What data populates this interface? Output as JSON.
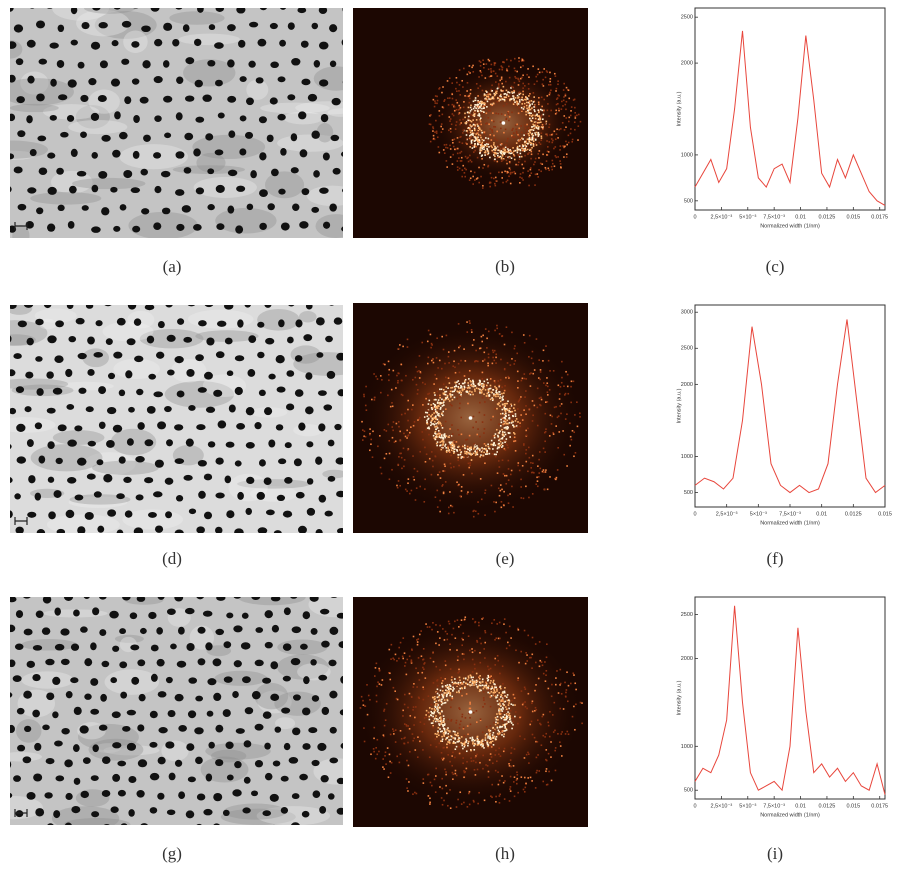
{
  "captions": [
    "(a)",
    "(b)",
    "(c)",
    "(d)",
    "(e)",
    "(f)",
    "(g)",
    "(h)",
    "(i)"
  ],
  "chart_data": [
    {
      "type": "line",
      "xlabel": "Normalized width (1/nm)",
      "ylabel": "Intensity (a.u.)",
      "x": [
        0,
        0.00075,
        0.0015,
        0.00225,
        0.003,
        0.00375,
        0.0045,
        0.00525,
        0.006,
        0.00675,
        0.0075,
        0.00825,
        0.009,
        0.00975,
        0.0105,
        0.01125,
        0.012,
        0.01275,
        0.0135,
        0.01425,
        0.015,
        0.01575,
        0.0165,
        0.01725,
        0.018
      ],
      "series": [
        {
          "color": "#e8463c",
          "values": [
            650,
            800,
            950,
            700,
            850,
            1500,
            2350,
            1300,
            750,
            650,
            850,
            900,
            700,
            1400,
            2300,
            1600,
            800,
            650,
            950,
            750,
            1000,
            800,
            600,
            500,
            450
          ]
        }
      ],
      "xlim": [
        0,
        0.018
      ],
      "ylim": [
        400,
        2600
      ],
      "xticks": [
        0,
        {
          "value": 0.0025,
          "label": "2,5×10⁻³"
        },
        {
          "value": 0.005,
          "label": "5×10⁻³"
        },
        {
          "value": 0.0075,
          "label": "7,5×10⁻³"
        },
        0.01,
        0.0125,
        0.015,
        0.0175
      ],
      "yticks": [
        500,
        1000,
        2000,
        2500
      ]
    },
    {
      "type": "line",
      "xlabel": "Normalized width (1/nm)",
      "ylabel": "Intensity (a.u.)",
      "x": [
        0,
        0.00075,
        0.0015,
        0.00225,
        0.003,
        0.00375,
        0.0045,
        0.00525,
        0.006,
        0.00675,
        0.0075,
        0.00825,
        0.009,
        0.00975,
        0.0105,
        0.01125,
        0.012,
        0.01275,
        0.0135,
        0.01425,
        0.015
      ],
      "series": [
        {
          "color": "#e8463c",
          "values": [
            600,
            700,
            650,
            550,
            700,
            1500,
            2800,
            2000,
            900,
            600,
            500,
            600,
            500,
            550,
            900,
            2000,
            2900,
            1800,
            700,
            500,
            600
          ]
        }
      ],
      "xlim": [
        0,
        0.015
      ],
      "ylim": [
        300,
        3100
      ],
      "xticks": [
        0,
        {
          "value": 0.0025,
          "label": "2,5×10⁻³"
        },
        {
          "value": 0.005,
          "label": "5×10⁻³"
        },
        {
          "value": 0.0075,
          "label": "7,5×10⁻³"
        },
        0.01,
        0.0125,
        0.015
      ],
      "yticks": [
        500,
        1000,
        2000,
        2500,
        3000
      ]
    },
    {
      "type": "line",
      "xlabel": "Normalized width (1/nm)",
      "ylabel": "Intensity (a.u.)",
      "x": [
        0,
        0.00075,
        0.0015,
        0.00225,
        0.003,
        0.00375,
        0.0045,
        0.00525,
        0.006,
        0.00675,
        0.0075,
        0.00825,
        0.009,
        0.00975,
        0.0105,
        0.01125,
        0.012,
        0.01275,
        0.0135,
        0.01425,
        0.015,
        0.01575,
        0.0165,
        0.01725,
        0.018
      ],
      "series": [
        {
          "color": "#e8463c",
          "values": [
            600,
            750,
            700,
            900,
            1300,
            2600,
            1500,
            700,
            500,
            550,
            600,
            500,
            1000,
            2350,
            1400,
            700,
            800,
            650,
            750,
            600,
            700,
            550,
            500,
            800,
            450
          ]
        }
      ],
      "xlim": [
        0,
        0.018
      ],
      "ylim": [
        400,
        2700
      ],
      "xticks": [
        0,
        {
          "value": 0.0025,
          "label": "2,5×10⁻³"
        },
        {
          "value": 0.005,
          "label": "5×10⁻³"
        },
        {
          "value": 0.0075,
          "label": "7,5×10⁻³"
        },
        0.01,
        0.0125,
        0.015,
        0.0175
      ],
      "yticks": [
        500,
        1000,
        2000,
        2500
      ]
    }
  ]
}
